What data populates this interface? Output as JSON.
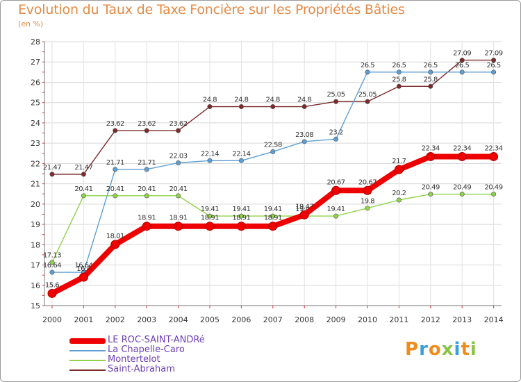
{
  "header": {
    "title": "Evolution du Taux de Taxe Foncière sur les Propriétés Bâties",
    "unit": "(en %)"
  },
  "logo": {
    "text": "Proxiti",
    "colors": [
      "#f08c1e",
      "#3aa0d8",
      "#f08c1e",
      "#8bc34a",
      "#3aa0d8",
      "#f08c1e",
      "#8bc34a"
    ]
  },
  "chart_data": {
    "type": "line",
    "title": "Evolution du Taux de Taxe Foncière sur les Propriétés Bâties",
    "ylabel": "(en %)",
    "xlabel": "",
    "x": [
      "2000",
      "2001",
      "2002",
      "2003",
      "2004",
      "2005",
      "2006",
      "2007",
      "2008",
      "2009",
      "2010",
      "2011",
      "2012",
      "2013",
      "2014"
    ],
    "ylim": [
      15,
      28
    ],
    "yticks": [
      "15",
      "16",
      "17",
      "18",
      "19",
      "20",
      "21",
      "22",
      "23",
      "24",
      "25",
      "26",
      "27",
      "28"
    ],
    "grid": true,
    "legend_position": "bottom-left",
    "series": [
      {
        "name": "Saint-Abraham",
        "color": "#7b2a2a",
        "values": [
          21.47,
          21.47,
          23.62,
          23.62,
          23.62,
          24.8,
          24.8,
          24.8,
          24.8,
          25.05,
          25.05,
          25.8,
          25.8,
          27.09,
          27.09
        ],
        "labels": [
          "21.47",
          "21.47",
          "23.62",
          "23.62",
          "23.62",
          "24.8",
          "24.8",
          "24.8",
          "24.8",
          "25.05",
          "25.05",
          "25.8",
          "25.8",
          "27.09",
          "27.09"
        ]
      },
      {
        "name": "La Chapelle-Caro",
        "color": "#5e9fd3",
        "values": [
          16.64,
          16.64,
          21.71,
          21.71,
          22.03,
          22.14,
          22.14,
          22.58,
          23.08,
          23.2,
          26.5,
          26.5,
          26.5,
          26.5,
          26.5
        ],
        "labels": [
          "16.64",
          "16.64",
          "21.71",
          "21.71",
          "22.03",
          "22.14",
          "22.14",
          "22.58",
          "23.08",
          "23.2",
          "26.5",
          "26.5",
          "26.5",
          "26.5",
          "26.5"
        ]
      },
      {
        "name": "Montertelot",
        "color": "#8fd34a",
        "values": [
          17.13,
          20.41,
          20.41,
          20.41,
          20.41,
          19.41,
          19.41,
          19.41,
          19.41,
          19.41,
          19.8,
          20.2,
          20.49,
          20.49,
          20.49
        ],
        "labels": [
          "17.13",
          "20.41",
          "20.41",
          "20.41",
          "20.41",
          "19.41",
          "19.41",
          "19.41",
          "19.41",
          "19.41",
          "19.8",
          "20.2",
          "20.49",
          "20.49",
          "20.49"
        ]
      },
      {
        "name": "LE ROC-SAINT-ANDRé",
        "color": "#ee0000",
        "values": [
          15.6,
          16.4,
          18.01,
          18.91,
          18.91,
          18.91,
          18.91,
          18.91,
          19.47,
          20.67,
          20.67,
          21.7,
          22.34,
          22.34,
          22.34
        ],
        "labels": [
          "15.6",
          "16.4",
          "18.01",
          "18.91",
          "18.91",
          "18.91",
          "18.91",
          "18.91",
          "19.47",
          "20.67",
          "20.67",
          "21.7",
          "22.34",
          "22.34",
          "22.34"
        ]
      }
    ],
    "legend": [
      "LE ROC-SAINT-ANDRé",
      "La Chapelle-Caro",
      "Montertelot",
      "Saint-Abraham"
    ]
  }
}
